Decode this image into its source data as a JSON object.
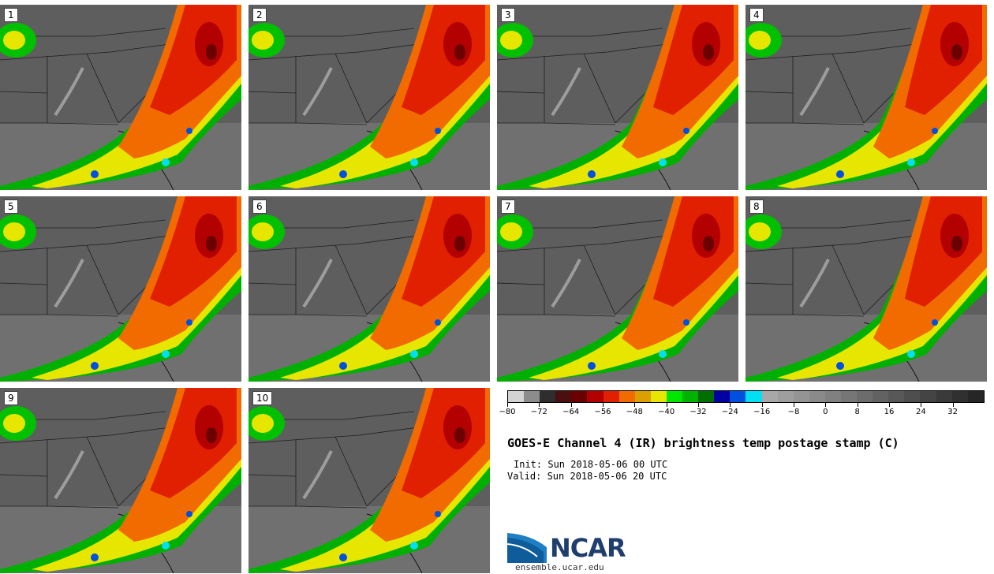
{
  "members": [
    {
      "label": "1"
    },
    {
      "label": "2"
    },
    {
      "label": "3"
    },
    {
      "label": "4"
    },
    {
      "label": "5"
    },
    {
      "label": "6"
    },
    {
      "label": "7"
    },
    {
      "label": "8"
    },
    {
      "label": "9"
    },
    {
      "label": "10"
    }
  ],
  "colorbar": {
    "colors": [
      "#d3d3d3",
      "#8c8c8c",
      "#2e2e2e",
      "#4a1010",
      "#6b0000",
      "#b30000",
      "#e02000",
      "#f26b00",
      "#d9a000",
      "#e6e600",
      "#00e600",
      "#00b300",
      "#006e00",
      "#0000a0",
      "#0050e0",
      "#00e0f0",
      "#a8a8a8",
      "#9e9e9e",
      "#949494",
      "#8a8a8a",
      "#808080",
      "#767676",
      "#6c6c6c",
      "#626262",
      "#585858",
      "#4e4e4e",
      "#444444",
      "#3a3a3a",
      "#303030",
      "#262626"
    ],
    "ticks": [
      "−80",
      "−72",
      "−64",
      "−56",
      "−48",
      "−40",
      "−32",
      "−24",
      "−16",
      "−8",
      "0",
      "8",
      "16",
      "24",
      "32"
    ]
  },
  "title": "GOES-E Channel 4 (IR) brightness temp postage stamp (C)",
  "init": "Init: Sun 2018-05-06 00 UTC",
  "valid": "Valid: Sun 2018-05-06 20 UTC",
  "logo_text": "NCAR",
  "site": "ensemble.ucar.edu"
}
